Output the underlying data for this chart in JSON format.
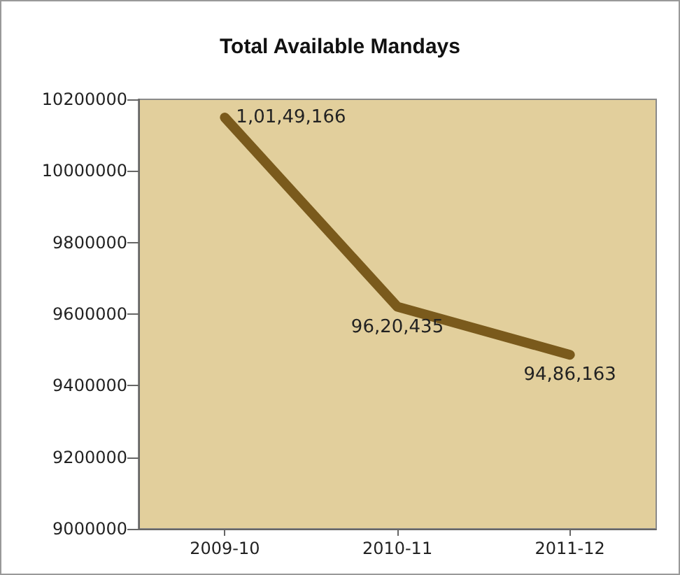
{
  "chart_data": {
    "type": "line",
    "title": "Total Available Mandays",
    "categories": [
      "2009-10",
      "2010-11",
      "2011-12"
    ],
    "series": [
      {
        "color": "#7a5a1c",
        "values": [
          10149166,
          9620435,
          9486163
        ],
        "value_labels": [
          "1,01,49,166",
          "96,20,435",
          "94,86,163"
        ]
      }
    ],
    "ylim": [
      9000000,
      10200000
    ],
    "yticks": [
      9000000,
      9200000,
      9400000,
      9600000,
      9800000,
      10000000,
      10200000
    ],
    "grid": false,
    "marker": "none",
    "line_style": "solid"
  }
}
